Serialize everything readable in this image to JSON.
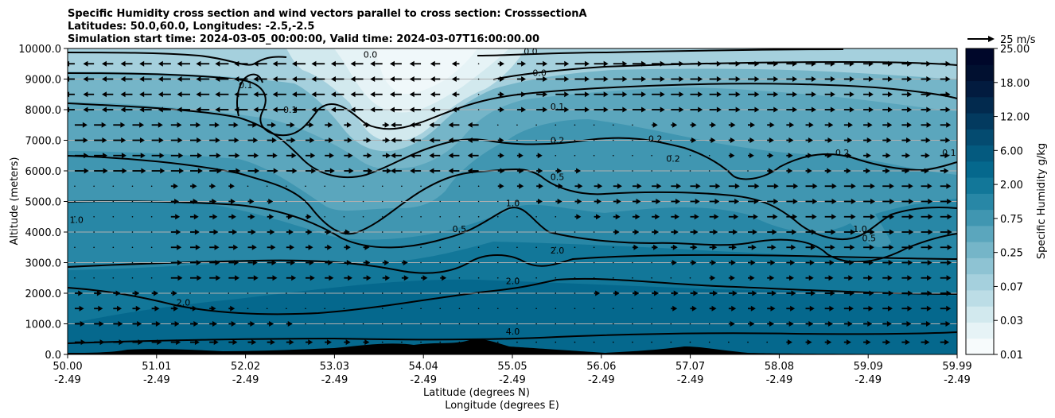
{
  "chart_data": {
    "type": "contourf-cross-section",
    "title_lines": [
      "Specific Humidity cross section and wind vectors parallel to cross section: CrosssectionA",
      "Latitudes: 50.0,60.0, Longitudes: -2.5,-2.5",
      "Simulation start time: 2024-03-05_00:00:00, Valid time: 2024-03-07T16:00:00.00"
    ],
    "ylabel": "Altitude (meters)",
    "xlabel_lat": "Latitude (degrees N)",
    "xlabel_lon": "Longitude (degrees E)",
    "ylim": [
      0,
      10000
    ],
    "y_ticks": [
      "0.0",
      "1000.0",
      "2000.0",
      "3000.0",
      "4000.0",
      "5000.0",
      "6000.0",
      "7000.0",
      "8000.0",
      "9000.0",
      "10000.0"
    ],
    "x_ticks": [
      {
        "lat": "50.00",
        "lon": "-2.49"
      },
      {
        "lat": "51.01",
        "lon": "-2.49"
      },
      {
        "lat": "52.02",
        "lon": "-2.49"
      },
      {
        "lat": "53.03",
        "lon": "-2.49"
      },
      {
        "lat": "54.04",
        "lon": "-2.49"
      },
      {
        "lat": "55.05",
        "lon": "-2.49"
      },
      {
        "lat": "56.06",
        "lon": "-2.49"
      },
      {
        "lat": "57.07",
        "lon": "-2.49"
      },
      {
        "lat": "58.08",
        "lon": "-2.49"
      },
      {
        "lat": "59.09",
        "lon": "-2.49"
      },
      {
        "lat": "59.99",
        "lon": "-2.49"
      }
    ],
    "colorbar": {
      "label": "Specific Humidity g/kg",
      "levels": [
        "0.01",
        "0.03",
        "0.07",
        "0.25",
        "0.75",
        "2.00",
        "6.00",
        "12.00",
        "18.00",
        "25.00"
      ],
      "tick_labels": [
        "0.01",
        "0.03",
        "0.07",
        "0.25",
        "0.75",
        "2.00",
        "6.00",
        "12.00",
        "18.00",
        "25.00"
      ],
      "colors": [
        "#f7fbfc",
        "#e6f3f6",
        "#d2e9ee",
        "#bcdde6",
        "#a5d0dd",
        "#8ec3d3",
        "#75b5c8",
        "#5ba6bd",
        "#4096b1",
        "#2887a6",
        "#127799",
        "#05688d",
        "#045a7f",
        "#044b70",
        "#033a5f",
        "#022a4e",
        "#021b3f",
        "#011030",
        "#00072a"
      ]
    },
    "contour_labels": [
      {
        "value": "0.0",
        "lat": 53.4,
        "alt": 9700
      },
      {
        "value": "0.0",
        "lat": 55.2,
        "alt": 9800
      },
      {
        "value": "0.0",
        "lat": 55.3,
        "alt": 9100
      },
      {
        "value": "0.1",
        "lat": 52.0,
        "alt": 8700
      },
      {
        "value": "0.1",
        "lat": 52.5,
        "alt": 7900
      },
      {
        "value": "0.1",
        "lat": 55.5,
        "alt": 8000
      },
      {
        "value": "0.1",
        "lat": 59.9,
        "alt": 6500
      },
      {
        "value": "0.2",
        "lat": 55.5,
        "alt": 6900
      },
      {
        "value": "0.2",
        "lat": 56.6,
        "alt": 6950
      },
      {
        "value": "0.2",
        "lat": 56.8,
        "alt": 6300
      },
      {
        "value": "0.2",
        "lat": 58.7,
        "alt": 6500
      },
      {
        "value": "0.5",
        "lat": 55.5,
        "alt": 5700
      },
      {
        "value": "0.5",
        "lat": 54.4,
        "alt": 4000
      },
      {
        "value": "0.5",
        "lat": 59.0,
        "alt": 3700
      },
      {
        "value": "1.0",
        "lat": 55.0,
        "alt": 4850
      },
      {
        "value": "1.0",
        "lat": 50.1,
        "alt": 4300
      },
      {
        "value": "1.0",
        "lat": 58.9,
        "alt": 4000
      },
      {
        "value": "2.0",
        "lat": 55.5,
        "alt": 3300
      },
      {
        "value": "2.0",
        "lat": 55.0,
        "alt": 2300
      },
      {
        "value": "2.0",
        "lat": 51.3,
        "alt": 1600
      },
      {
        "value": "4.0",
        "lat": 55.0,
        "alt": 650
      }
    ],
    "wind_reference": {
      "label": "25 m/s",
      "speed": 25
    },
    "wind_levels_m": [
      400,
      1000,
      1500,
      2000,
      2500,
      3000,
      3500,
      4000,
      4500,
      5000,
      5500,
      6000,
      6500,
      7000,
      7500,
      8000,
      8500,
      9000,
      9500
    ],
    "wind_u_examples": {
      "upper_left_region": "westward (negative) 5-10 m/s",
      "upper_right_region": "eastward 10-15 m/s",
      "mid_levels": "eastward 5-10 m/s",
      "low_levels": "eastward 3-8 m/s"
    }
  }
}
